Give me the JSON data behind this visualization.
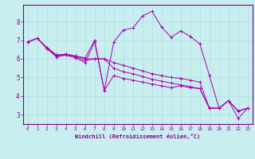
{
  "xlabel": "Windchill (Refroidissement éolien,°C)",
  "background_color": "#c8eef0",
  "line_color": "#aa00aa",
  "grid_color": "#aadddd",
  "axis_color": "#880088",
  "text_color": "#880088",
  "xlim": [
    -0.5,
    23.5
  ],
  "ylim": [
    2.5,
    8.9
  ],
  "xticks": [
    0,
    1,
    2,
    3,
    4,
    5,
    6,
    7,
    8,
    9,
    10,
    11,
    12,
    13,
    14,
    15,
    16,
    17,
    18,
    19,
    20,
    21,
    22,
    23
  ],
  "yticks": [
    3,
    4,
    5,
    6,
    7,
    8
  ],
  "lines": [
    [
      6.9,
      7.1,
      6.6,
      6.2,
      6.25,
      6.15,
      6.05,
      7.0,
      4.3,
      6.9,
      7.55,
      7.65,
      8.3,
      8.55,
      7.7,
      7.15,
      7.5,
      7.2,
      6.8,
      5.1,
      3.35,
      3.75,
      3.2,
      3.35
    ],
    [
      6.9,
      7.1,
      6.6,
      6.2,
      6.25,
      6.15,
      6.0,
      6.0,
      6.0,
      5.8,
      5.65,
      5.5,
      5.35,
      5.2,
      5.1,
      5.0,
      4.95,
      4.85,
      4.75,
      3.35,
      3.35,
      3.75,
      3.2,
      3.35
    ],
    [
      6.9,
      7.1,
      6.55,
      6.1,
      6.2,
      6.05,
      5.8,
      6.9,
      4.3,
      5.1,
      4.95,
      4.85,
      4.75,
      4.65,
      4.55,
      4.45,
      4.55,
      4.45,
      4.4,
      3.35,
      3.35,
      3.75,
      2.8,
      3.35
    ],
    [
      6.9,
      7.1,
      6.55,
      6.15,
      6.2,
      6.1,
      5.9,
      6.0,
      6.0,
      5.5,
      5.3,
      5.2,
      5.05,
      4.9,
      4.8,
      4.7,
      4.6,
      4.5,
      4.4,
      3.35,
      3.35,
      3.75,
      3.2,
      3.35
    ]
  ]
}
